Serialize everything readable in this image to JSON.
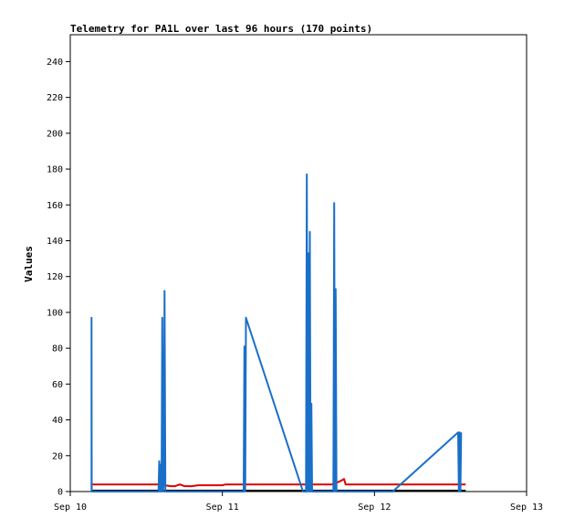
{
  "chart_data": {
    "type": "line",
    "title": "Telemetry for PA1L over last 96 hours (170 points)",
    "xlabel": "",
    "ylabel": "Values",
    "x_ticks": [
      "Sep 10",
      "Sep 11",
      "Sep 12",
      "Sep 13"
    ],
    "x_range_days": [
      0,
      3
    ],
    "ylim": [
      0,
      255
    ],
    "y_ticks": [
      0,
      20,
      40,
      60,
      80,
      100,
      120,
      140,
      160,
      180,
      200,
      220,
      240
    ],
    "grid": false,
    "legend": "none",
    "series": [
      {
        "color": "#000000",
        "points": [
          [
            0.14,
            0.5
          ],
          [
            2.6,
            0.5
          ]
        ]
      },
      {
        "color": "#dd0000",
        "points": [
          [
            0.14,
            4
          ],
          [
            0.58,
            4
          ],
          [
            0.62,
            3.5
          ],
          [
            0.66,
            3
          ],
          [
            0.69,
            3
          ],
          [
            0.72,
            4
          ],
          [
            0.75,
            3
          ],
          [
            0.8,
            3
          ],
          [
            0.84,
            3.5
          ],
          [
            1.0,
            3.5
          ],
          [
            1.02,
            4
          ],
          [
            1.3,
            4
          ],
          [
            1.55,
            4
          ],
          [
            1.72,
            4
          ],
          [
            1.74,
            4.5
          ],
          [
            1.78,
            6
          ],
          [
            1.8,
            7
          ],
          [
            1.81,
            4
          ],
          [
            2.0,
            4
          ],
          [
            2.3,
            4
          ],
          [
            2.6,
            4
          ]
        ]
      },
      {
        "color": "#1a6fc7",
        "points": [
          [
            0.14,
            0
          ],
          [
            0.14,
            97
          ],
          [
            0.141,
            0
          ],
          [
            0.58,
            0
          ],
          [
            0.585,
            17
          ],
          [
            0.59,
            0
          ],
          [
            0.595,
            15
          ],
          [
            0.6,
            0
          ],
          [
            0.605,
            97
          ],
          [
            0.61,
            0
          ],
          [
            0.615,
            8
          ],
          [
            0.62,
            112
          ],
          [
            0.625,
            0
          ],
          [
            1.14,
            0
          ],
          [
            1.145,
            81
          ],
          [
            1.15,
            0
          ],
          [
            1.155,
            97
          ],
          [
            1.53,
            0
          ],
          [
            1.55,
            0
          ],
          [
            1.555,
            177
          ],
          [
            1.56,
            0
          ],
          [
            1.565,
            133
          ],
          [
            1.57,
            0
          ],
          [
            1.575,
            145
          ],
          [
            1.58,
            0
          ],
          [
            1.585,
            49
          ],
          [
            1.59,
            0
          ],
          [
            1.73,
            0
          ],
          [
            1.735,
            161
          ],
          [
            1.74,
            0
          ],
          [
            1.745,
            113
          ],
          [
            1.75,
            0
          ],
          [
            2.12,
            0
          ],
          [
            2.55,
            33
          ],
          [
            2.555,
            0
          ],
          [
            2.56,
            33
          ],
          [
            2.565,
            0
          ],
          [
            2.57,
            33
          ]
        ]
      }
    ]
  }
}
